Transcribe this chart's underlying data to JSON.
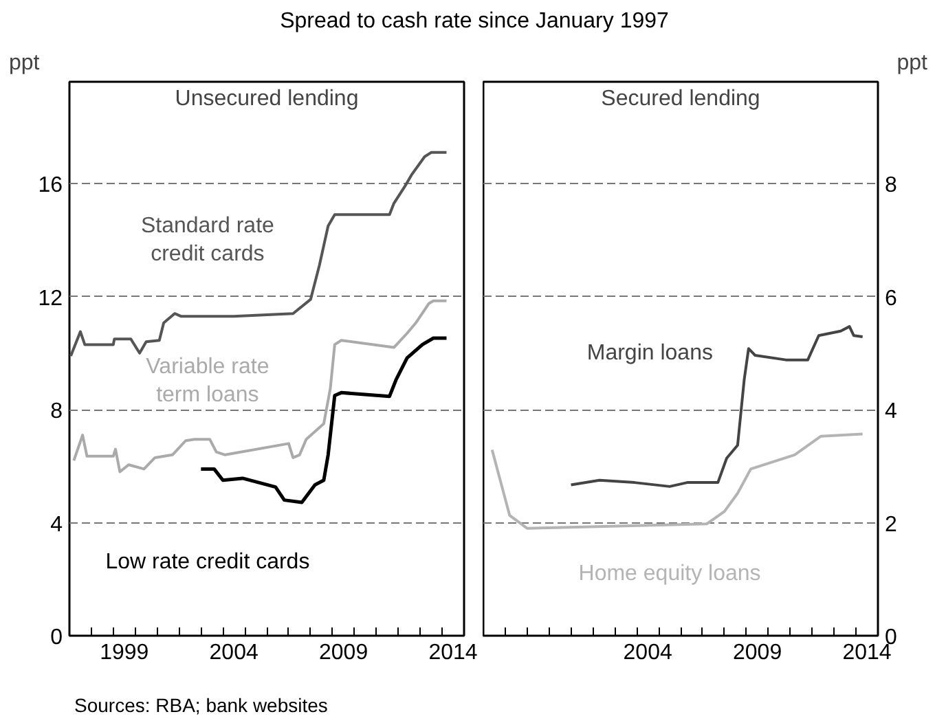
{
  "chart_data": [
    {
      "type": "line",
      "title": "Spread to cash rate since January 1997",
      "subtitle": "Unsecured lending",
      "ylabel": "ppt",
      "xlim": [
        1997,
        2015
      ],
      "ylim": [
        0,
        19.6
      ],
      "xticks": [
        {
          "value": 1998,
          "label": null
        },
        {
          "value": 1999,
          "label": null
        },
        {
          "value": 1999.5,
          "label": "1999"
        },
        {
          "value": 2000,
          "label": null
        },
        {
          "value": 2001,
          "label": null
        },
        {
          "value": 2002,
          "label": null
        },
        {
          "value": 2003,
          "label": null
        },
        {
          "value": 2004,
          "label": null
        },
        {
          "value": 2004.5,
          "label": "2004"
        },
        {
          "value": 2005,
          "label": null
        },
        {
          "value": 2006,
          "label": null
        },
        {
          "value": 2007,
          "label": null
        },
        {
          "value": 2008,
          "label": null
        },
        {
          "value": 2009,
          "label": null
        },
        {
          "value": 2009.5,
          "label": "2009"
        },
        {
          "value": 2010,
          "label": null
        },
        {
          "value": 2011,
          "label": null
        },
        {
          "value": 2012,
          "label": null
        },
        {
          "value": 2013,
          "label": null
        },
        {
          "value": 2014,
          "label": null
        },
        {
          "value": 2014.5,
          "label": "2014"
        }
      ],
      "yticks": [
        0,
        4,
        8,
        12,
        16
      ],
      "grid": "y",
      "tick_labels": "xy_left",
      "series": [
        {
          "name": "Standard rate credit cards",
          "color": "#555555",
          "x": [
            1997.06,
            1997.5,
            1997.7,
            1999.0,
            1999.05,
            1999.8,
            2000.2,
            2000.5,
            2001.1,
            2001.3,
            2001.8,
            2002.1,
            2004.5,
            2007.2,
            2008.0,
            2008.4,
            2008.8,
            2009.1,
            2011.6,
            2011.8,
            2012.3,
            2012.6,
            2013.2,
            2013.5,
            2014.2
          ],
          "values": [
            9.9,
            10.76,
            10.3,
            10.3,
            10.5,
            10.5,
            10.0,
            10.4,
            10.45,
            11.07,
            11.4,
            11.3,
            11.3,
            11.4,
            11.9,
            13.1,
            14.5,
            14.9,
            14.9,
            15.3,
            15.9,
            16.3,
            16.95,
            17.1,
            17.1
          ]
        },
        {
          "name": "Variable rate term loans",
          "color": "#aaaaaa",
          "x": [
            1997.2,
            1997.6,
            1997.8,
            1999.0,
            1999.1,
            1999.3,
            1999.7,
            2000.4,
            2000.9,
            2001.7,
            2002.3,
            2002.7,
            2003.4,
            2003.7,
            2004.1,
            2007.0,
            2007.2,
            2007.5,
            2007.8,
            2008.6,
            2008.9,
            2009.1,
            2009.4,
            2011.8,
            2012.4,
            2012.8,
            2013.4,
            2013.6,
            2014.2
          ],
          "values": [
            6.2,
            7.1,
            6.35,
            6.35,
            6.6,
            5.8,
            6.05,
            5.9,
            6.3,
            6.4,
            6.9,
            6.95,
            6.95,
            6.5,
            6.4,
            6.8,
            6.3,
            6.4,
            6.95,
            7.5,
            8.75,
            10.3,
            10.45,
            10.2,
            10.7,
            11.07,
            11.76,
            11.85,
            11.85
          ]
        },
        {
          "name": "Low rate credit cards",
          "color": "#000000",
          "x": [
            2003.0,
            2003.6,
            2004.0,
            2004.9,
            2006.4,
            2006.8,
            2007.6,
            2008.2,
            2008.6,
            2008.8,
            2009.1,
            2009.4,
            2011.6,
            2011.9,
            2012.4,
            2013.1,
            2013.6,
            2014.2
          ],
          "values": [
            5.9,
            5.9,
            5.5,
            5.57,
            5.26,
            4.8,
            4.72,
            5.34,
            5.5,
            6.4,
            8.5,
            8.6,
            8.47,
            9.06,
            9.83,
            10.3,
            10.53,
            10.53
          ]
        }
      ],
      "annotations": [
        "Sources: RBA; bank websites"
      ]
    },
    {
      "type": "line",
      "subtitle": "Secured lending",
      "ylabel": "ppt",
      "xlim": [
        1997,
        2015
      ],
      "ylim": [
        0,
        9.8
      ],
      "xticks": [
        {
          "value": 1998,
          "label": null
        },
        {
          "value": 1999,
          "label": null
        },
        {
          "value": 2000,
          "label": null
        },
        {
          "value": 2001,
          "label": null
        },
        {
          "value": 2002,
          "label": null
        },
        {
          "value": 2003,
          "label": null
        },
        {
          "value": 2004,
          "label": null
        },
        {
          "value": 2004.5,
          "label": "2004"
        },
        {
          "value": 2005,
          "label": null
        },
        {
          "value": 2006,
          "label": null
        },
        {
          "value": 2007,
          "label": null
        },
        {
          "value": 2008,
          "label": null
        },
        {
          "value": 2009,
          "label": null
        },
        {
          "value": 2009.5,
          "label": "2009"
        },
        {
          "value": 2010,
          "label": null
        },
        {
          "value": 2011,
          "label": null
        },
        {
          "value": 2012,
          "label": null
        },
        {
          "value": 2013,
          "label": null
        },
        {
          "value": 2014,
          "label": null
        },
        {
          "value": 2014.5,
          "label": "2014"
        }
      ],
      "yticks": [
        0,
        2,
        4,
        6,
        8
      ],
      "grid": "y",
      "tick_labels": "xy_right",
      "series": [
        {
          "name": "Margin loans",
          "color": "#444444",
          "x": [
            2001.0,
            2002.3,
            2003.9,
            2005.5,
            2006.3,
            2007.7,
            2008.1,
            2008.6,
            2008.9,
            2009.1,
            2009.4,
            2010.8,
            2011.8,
            2012.3,
            2012.8,
            2013.3,
            2013.7,
            2013.9,
            2014.3
          ],
          "values": [
            2.67,
            2.75,
            2.71,
            2.64,
            2.71,
            2.71,
            3.14,
            3.37,
            4.53,
            5.08,
            4.96,
            4.88,
            4.88,
            5.31,
            5.35,
            5.39,
            5.47,
            5.31,
            5.29
          ]
        },
        {
          "name": "Home equity loans",
          "color": "#b4b4b4",
          "x": [
            1997.4,
            1998.2,
            1999.0,
            2003.1,
            2007.2,
            2008.0,
            2008.6,
            2009.2,
            2011.2,
            2012.4,
            2014.3
          ],
          "values": [
            3.29,
            2.13,
            1.9,
            1.94,
            1.98,
            2.2,
            2.52,
            2.95,
            3.2,
            3.53,
            3.57
          ]
        }
      ]
    }
  ]
}
